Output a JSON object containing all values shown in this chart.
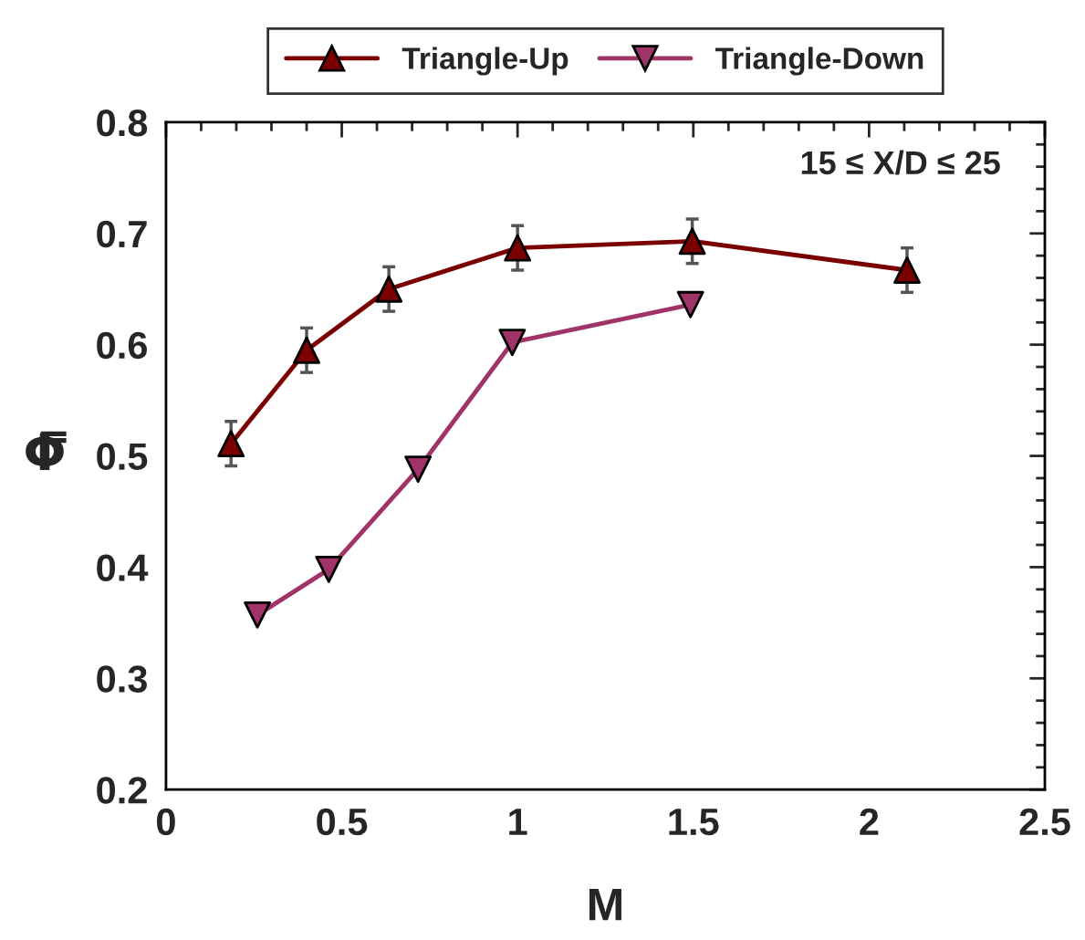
{
  "chart_data": {
    "type": "line",
    "xlabel": "M",
    "ylabel": "Φ̿",
    "xlim": [
      0,
      2.5
    ],
    "xticks": [
      0,
      0.5,
      1,
      1.5,
      2,
      2.5
    ],
    "ylim": [
      0.2,
      0.8
    ],
    "yticks": [
      0.2,
      0.3,
      0.4,
      0.5,
      0.6,
      0.7,
      0.8
    ],
    "grid": false,
    "legend": "top",
    "annotations": [
      "15 ≤ X/D ≤ 25"
    ],
    "series": [
      {
        "name": "Triangle-Up",
        "color": "#7a0000",
        "marker": "triangle",
        "x": [
          0.185,
          0.4,
          0.634,
          1.0,
          1.497,
          2.108
        ],
        "values": [
          0.511,
          0.595,
          0.65,
          0.687,
          0.693,
          0.667
        ],
        "errors": [
          0.02,
          0.02,
          0.02,
          0.02,
          0.02,
          0.02
        ]
      },
      {
        "name": "Triangle-Down",
        "color": "#a03468",
        "marker": "triangle_down",
        "x": [
          0.26,
          0.463,
          0.717,
          0.985,
          1.492
        ],
        "values": [
          0.357,
          0.398,
          0.488,
          0.602,
          0.636
        ]
      }
    ]
  }
}
